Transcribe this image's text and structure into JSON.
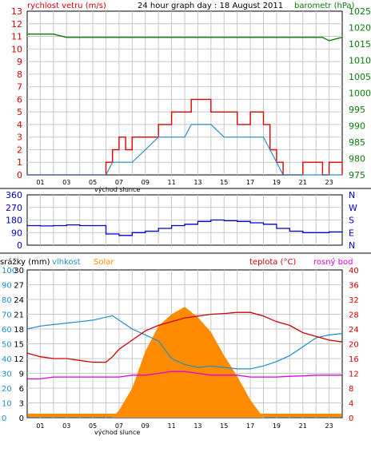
{
  "colors": {
    "wind": "#e00000",
    "gust_avg": "#2a8fc0",
    "baro": "#0a7a0a",
    "dir": "#0000d0",
    "humidity": "#1f8ec7",
    "solar": "#ff8c00",
    "temp": "#d00000",
    "dew": "#e000e0",
    "grid": "#c8c8c8",
    "frame": "#000000",
    "humidity_label": "#1f8ec7",
    "solar_label": "#ff8c00",
    "rain_label": "#000000"
  },
  "top": {
    "title": "24 hour graph day : 18 August 2011",
    "left_label": "rychlost vetru (m/s)",
    "right_label": "barometr (hPa)",
    "y_ticks": [
      0,
      1,
      2,
      3,
      4,
      5,
      6,
      7,
      8,
      9,
      10,
      11,
      12,
      13
    ],
    "baro_ticks": [
      975,
      980,
      985,
      990,
      995,
      1000,
      1005,
      1010,
      1015,
      1020,
      1025
    ],
    "x_ticks": [
      "01",
      "03",
      "05",
      "07",
      "09",
      "11",
      "13",
      "15",
      "17",
      "19",
      "21",
      "23"
    ],
    "sunrise_label": "východ slunce"
  },
  "mid": {
    "y_ticks": [
      0,
      90,
      180,
      270,
      360
    ],
    "dir_letters": [
      "N",
      "W",
      "S",
      "E",
      "N"
    ]
  },
  "bottom": {
    "rain_label": "srážky (mm)",
    "humidity_label": "vlhkost",
    "solar_label": "Solar",
    "temp_label": "teplota (°C)",
    "dew_label": "rosný bod",
    "humidity_ticks": [
      0,
      10,
      20,
      30,
      40,
      50,
      60,
      70,
      80,
      90,
      100
    ],
    "rain_ticks": [
      0,
      3,
      6,
      9,
      12,
      15,
      18,
      21,
      24,
      27,
      30
    ],
    "temp_ticks": [
      0,
      4,
      8,
      12,
      16,
      20,
      24,
      28,
      32,
      36,
      40
    ],
    "x_ticks": [
      "01",
      "03",
      "05",
      "07",
      "09",
      "11",
      "13",
      "15",
      "17",
      "19",
      "21",
      "23"
    ],
    "sunrise_label": "východ slunce"
  },
  "chart_data": [
    {
      "type": "line",
      "title": "24 hour graph day : 18 August 2011",
      "xlabel": "",
      "ylabel": "rychlost vetru (m/s)",
      "y2label": "barometr (hPa)",
      "ylim": [
        0,
        13
      ],
      "y2lim": [
        975,
        1025
      ],
      "x": [
        0,
        1,
        2,
        3,
        4,
        5,
        6,
        6.5,
        7,
        7.5,
        8,
        9,
        10,
        11,
        12,
        12.5,
        13,
        14,
        15,
        16,
        17,
        18,
        18.5,
        19,
        19.5,
        20,
        21,
        22,
        22.5,
        23,
        24
      ],
      "series": [
        {
          "name": "wind max",
          "values": [
            0,
            0,
            0,
            0,
            0,
            0,
            1,
            2,
            3,
            2,
            3,
            3,
            4,
            5,
            5,
            6,
            6,
            5,
            5,
            4,
            5,
            4,
            2,
            1,
            0,
            0,
            1,
            1,
            0,
            1,
            0
          ]
        },
        {
          "name": "wind avg",
          "values": [
            0,
            0,
            0,
            0,
            0,
            0,
            0,
            1,
            1,
            1,
            1,
            2,
            3,
            3,
            3,
            4,
            4,
            4,
            3,
            3,
            3,
            3,
            2,
            1,
            0,
            0,
            0,
            0,
            0,
            0,
            0
          ]
        },
        {
          "name": "barometr",
          "values": [
            1018,
            1018,
            1018,
            1017,
            1017,
            1017,
            1017,
            1017,
            1017,
            1017,
            1017,
            1017,
            1017,
            1017,
            1017,
            1017,
            1017,
            1017,
            1017,
            1017,
            1017,
            1017,
            1017,
            1017,
            1017,
            1017,
            1017,
            1017,
            1017,
            1016,
            1017
          ]
        }
      ]
    },
    {
      "type": "line",
      "ylabel": "",
      "ylim": [
        0,
        360
      ],
      "x": [
        0,
        1,
        2,
        3,
        4,
        5,
        5.5,
        6,
        7,
        8,
        9,
        10,
        11,
        12,
        13,
        14,
        15,
        16,
        17,
        18,
        19,
        20,
        21,
        22,
        23,
        24
      ],
      "series": [
        {
          "name": "direction",
          "values": [
            140,
            138,
            140,
            145,
            140,
            140,
            140,
            80,
            70,
            90,
            100,
            120,
            140,
            150,
            170,
            180,
            175,
            170,
            160,
            150,
            120,
            100,
            90,
            90,
            95,
            90
          ]
        }
      ]
    },
    {
      "type": "line",
      "ylabel": "",
      "ylim": [
        0,
        100
      ],
      "x": [
        0,
        1,
        2,
        3,
        4,
        5,
        6,
        6.5,
        7,
        8,
        9,
        10,
        11,
        12,
        13,
        14,
        15,
        16,
        17,
        18,
        19,
        20,
        21,
        22,
        23,
        24
      ],
      "series": [
        {
          "name": "vlhkost",
          "values": [
            60,
            62,
            63,
            64,
            65,
            66,
            68,
            69,
            66,
            60,
            56,
            52,
            40,
            36,
            34,
            35,
            34,
            33,
            33,
            35,
            38,
            42,
            48,
            54,
            56,
            57
          ]
        },
        {
          "name": "Solar",
          "values": [
            0,
            0,
            0,
            0,
            0,
            0,
            0,
            0,
            5,
            20,
            45,
            62,
            70,
            75,
            68,
            58,
            42,
            28,
            12,
            0,
            0,
            0,
            0,
            0,
            0,
            0
          ]
        },
        {
          "name": "teplota (°C)",
          "values": [
            17.5,
            16.5,
            16,
            16,
            15.5,
            15,
            15,
            16.5,
            18.5,
            21,
            23.5,
            25,
            26,
            27,
            27.5,
            28,
            28.2,
            28.5,
            28.5,
            27.5,
            26,
            25,
            23,
            22,
            21,
            20.5
          ]
        },
        {
          "name": "rosný bod",
          "values": [
            10.5,
            10.5,
            11,
            11,
            11,
            11,
            11,
            11,
            11,
            11.5,
            11.5,
            12,
            12.5,
            12.5,
            12,
            11.5,
            11.5,
            11.5,
            11,
            11,
            11,
            11.2,
            11.3,
            11.5,
            11.5,
            11.5
          ]
        }
      ]
    }
  ]
}
